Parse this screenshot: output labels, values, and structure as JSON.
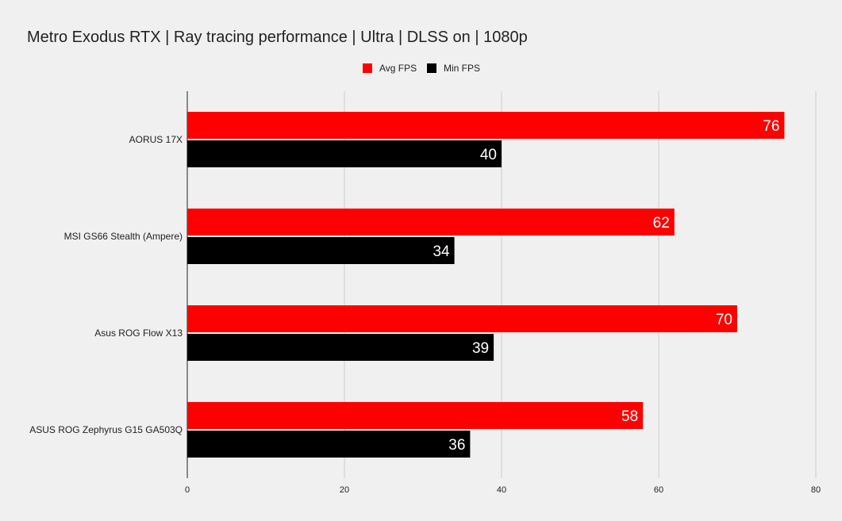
{
  "chart_data": {
    "type": "bar",
    "orientation": "horizontal",
    "title": "Metro Exodus RTX | Ray tracing performance | Ultra | DLSS on | 1080p",
    "categories": [
      "AORUS 17X",
      "MSI GS66 Stealth (Ampere)",
      "Asus ROG Flow X13",
      "ASUS ROG Zephyrus G15 GA503Q"
    ],
    "series": [
      {
        "name": "Avg FPS",
        "color": "#ff0000",
        "values": [
          76,
          62,
          70,
          58
        ]
      },
      {
        "name": "Min FPS",
        "color": "#000000",
        "values": [
          40,
          34,
          39,
          36
        ]
      }
    ],
    "xlim": [
      0,
      80
    ],
    "x_ticks": [
      "0",
      "20",
      "40",
      "60",
      "80"
    ],
    "grid": true,
    "legend_position": "top-center"
  }
}
